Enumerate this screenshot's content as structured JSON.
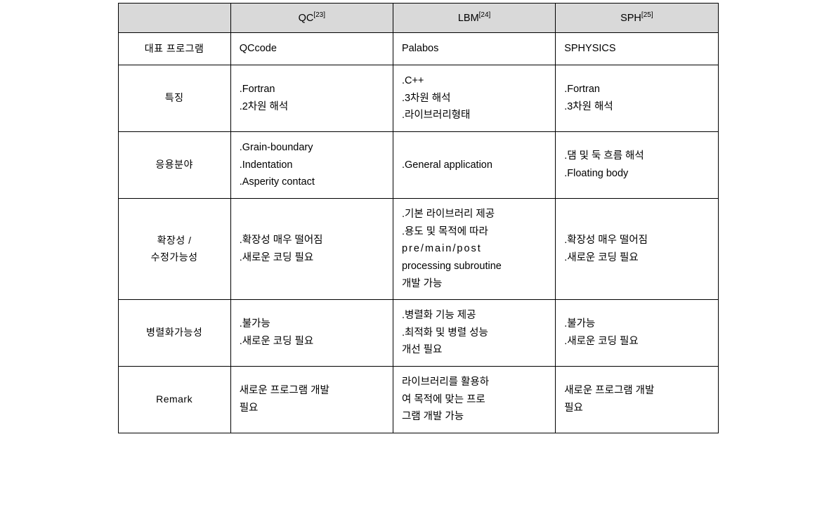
{
  "table": {
    "headers": {
      "blank": "",
      "col1": {
        "name": "QC",
        "ref": "[23]"
      },
      "col2": {
        "name": "LBM",
        "ref": "[24]"
      },
      "col3": {
        "name": "SPH",
        "ref": "[25]"
      }
    },
    "rows": {
      "program": {
        "label": "대표 프로그램",
        "qc": "QCcode",
        "lbm": "Palabos",
        "sph": "SPHYSICS"
      },
      "features": {
        "label": "특징",
        "qc_1": ".Fortran",
        "qc_2": ".2차원 해석",
        "lbm_1": ".C++",
        "lbm_2": ".3차원 해석",
        "lbm_3": ".라이브러리형태",
        "sph_1": ".Fortran",
        "sph_2": ".3차원 해석"
      },
      "application": {
        "label": "응용분야",
        "qc_1": ".Grain-boundary",
        "qc_2": ".Indentation",
        "qc_3": ".Asperity contact",
        "lbm_1": ".General application",
        "sph_1": ".댐 및 둑 흐름 해석",
        "sph_2": ".Floating body"
      },
      "extensibility": {
        "label_1": "확장성 /",
        "label_2": "수정가능성",
        "qc_1": ".확장성 매우 떨어짐",
        "qc_2": ".새로운 코딩 필요",
        "lbm_1": ".기본 라이브러리 제공",
        "lbm_2": ".용도 및 목적에 따라",
        "lbm_3": "pre/main/post",
        "lbm_4": "processing subroutine",
        "lbm_5": "개발 가능",
        "sph_1": ".확장성 매우 떨어짐",
        "sph_2": ".새로운 코딩 필요"
      },
      "parallel": {
        "label": "병렬화가능성",
        "qc_1": ".불가능",
        "qc_2": ".새로운 코딩 필요",
        "lbm_1": ".병렬화 기능 제공",
        "lbm_2": ".최적화 및 병렬 성능",
        "lbm_3": "개선 필요",
        "sph_1": ".불가능",
        "sph_2": ".새로운 코딩 필요"
      },
      "remark": {
        "label": "Remark",
        "qc_1": "새로운 프로그램 개발",
        "qc_2": "필요",
        "lbm_1": "라이브러리를    활용하",
        "lbm_2": "여 목적에 맞는 프로",
        "lbm_3": "그램 개발 가능",
        "sph_1": "새로운 프로그램 개발",
        "sph_2": "필요"
      }
    }
  }
}
